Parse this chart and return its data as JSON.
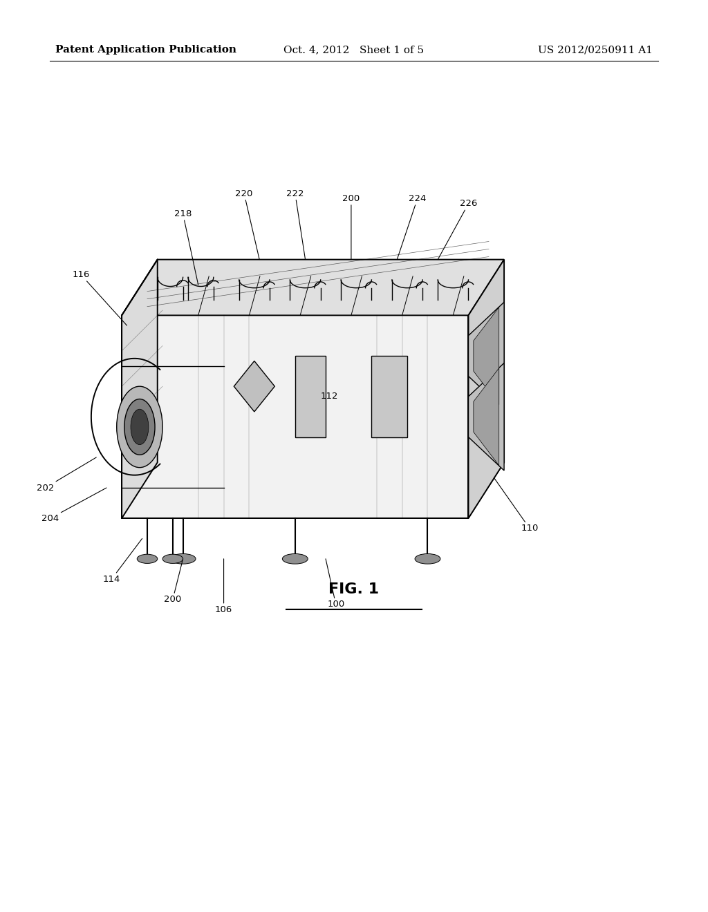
{
  "background_color": "#ffffff",
  "page_width": 10.24,
  "page_height": 13.2,
  "header_left": "Patent Application Publication",
  "header_center": "Oct. 4, 2012   Sheet 1 of 5",
  "header_right": "US 2012/0250911 A1",
  "header_fontsize": 11,
  "fig_label": "FIG. 1",
  "fig_label_fontsize": 16
}
